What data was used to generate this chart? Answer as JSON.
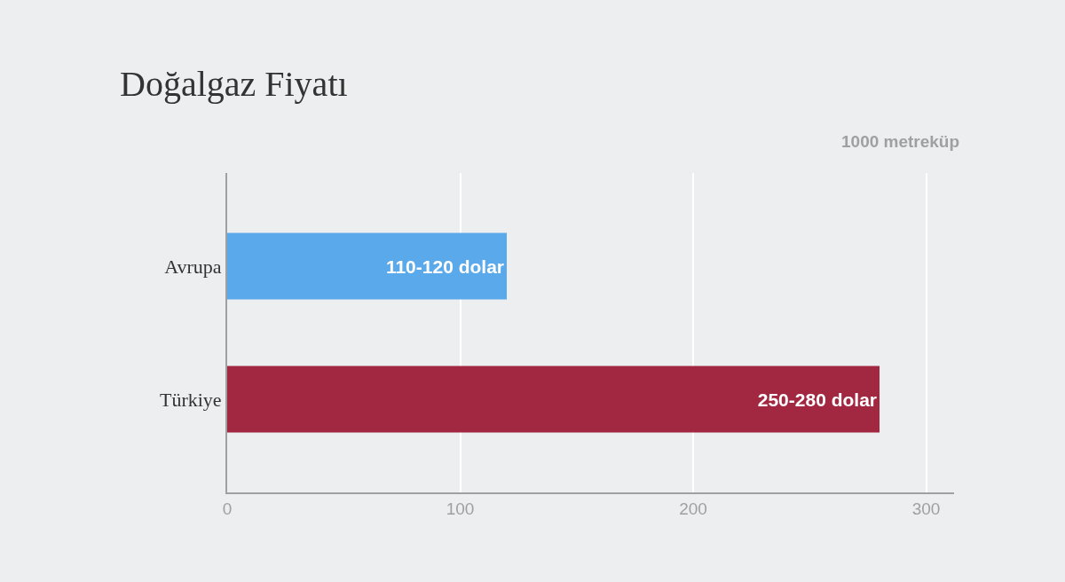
{
  "chart_data": {
    "type": "bar",
    "orientation": "horizontal",
    "title": "Doğalgaz Fiyatı",
    "annotations": [
      "1000 metreküp"
    ],
    "categories": [
      "Avrupa",
      "Türkiye"
    ],
    "values": [
      120,
      280
    ],
    "colors": [
      "#5aa9ea",
      "#a22841"
    ],
    "value_labels": [
      "110-120 dolar",
      "250-280 dolar"
    ],
    "xlim": [
      0,
      312
    ],
    "xticks": [
      0,
      100,
      200,
      300
    ],
    "grid": "x"
  }
}
